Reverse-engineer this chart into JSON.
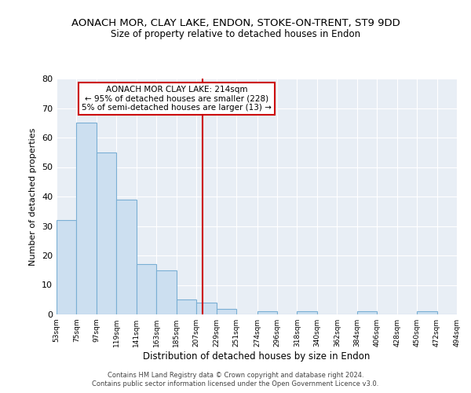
{
  "title": "AONACH MOR, CLAY LAKE, ENDON, STOKE-ON-TRENT, ST9 9DD",
  "subtitle": "Size of property relative to detached houses in Endon",
  "xlabel": "Distribution of detached houses by size in Endon",
  "ylabel": "Number of detached properties",
  "bar_edges": [
    53,
    75,
    97,
    119,
    141,
    163,
    185,
    207,
    229,
    251,
    274,
    296,
    318,
    340,
    362,
    384,
    406,
    428,
    450,
    472,
    494
  ],
  "bar_heights": [
    32,
    65,
    55,
    39,
    17,
    15,
    5,
    4,
    2,
    0,
    1,
    0,
    1,
    0,
    0,
    1,
    0,
    0,
    1,
    0
  ],
  "bar_color": "#ccdff0",
  "bar_edge_color": "#7aafd4",
  "vline_x": 214,
  "vline_color": "#cc0000",
  "annotation_title": "AONACH MOR CLAY LAKE: 214sqm",
  "annotation_line1": "← 95% of detached houses are smaller (228)",
  "annotation_line2": "5% of semi-detached houses are larger (13) →",
  "ylim": [
    0,
    80
  ],
  "yticks": [
    0,
    10,
    20,
    30,
    40,
    50,
    60,
    70,
    80
  ],
  "tick_labels": [
    "53sqm",
    "75sqm",
    "97sqm",
    "119sqm",
    "141sqm",
    "163sqm",
    "185sqm",
    "207sqm",
    "229sqm",
    "251sqm",
    "274sqm",
    "296sqm",
    "318sqm",
    "340sqm",
    "362sqm",
    "384sqm",
    "406sqm",
    "428sqm",
    "450sqm",
    "472sqm",
    "494sqm"
  ],
  "footer1": "Contains HM Land Registry data © Crown copyright and database right 2024.",
  "footer2": "Contains public sector information licensed under the Open Government Licence v3.0.",
  "bg_color": "#ffffff",
  "plot_bg_color": "#e8eef5",
  "grid_color": "#ffffff"
}
